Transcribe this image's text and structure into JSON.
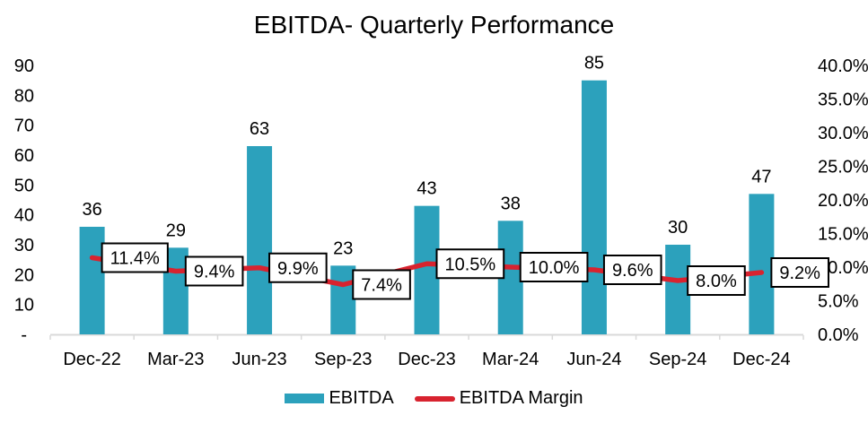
{
  "chart_data": {
    "type": "bar",
    "title": "EBITDA- Quarterly Performance",
    "categories": [
      "Dec-22",
      "Mar-23",
      "Jun-23",
      "Sep-23",
      "Dec-23",
      "Mar-24",
      "Jun-24",
      "Sep-24",
      "Dec-24"
    ],
    "series": [
      {
        "name": "EBITDA",
        "chart_type": "bar",
        "axis": "left",
        "color": "#2CA1BC",
        "values": [
          36,
          29,
          63,
          23,
          43,
          38,
          85,
          30,
          47
        ],
        "data_labels": [
          "36",
          "29",
          "63",
          "23",
          "43",
          "38",
          "85",
          "30",
          "47"
        ]
      },
      {
        "name": "EBITDA Margin",
        "chart_type": "line",
        "axis": "right",
        "color": "#D8232F",
        "values": [
          11.4,
          9.4,
          9.9,
          7.4,
          10.5,
          10.0,
          9.6,
          8.0,
          9.2
        ],
        "data_labels": [
          "11.4%",
          "9.4%",
          "9.9%",
          "7.4%",
          "10.5%",
          "10.0%",
          "9.6%",
          "8.0%",
          "9.2%"
        ]
      }
    ],
    "left_axis": {
      "min": 0,
      "max": 90,
      "step": 10,
      "tick_labels": [
        "90",
        "80",
        "70",
        "60",
        "50",
        "40",
        "30",
        "20",
        "10",
        "-"
      ]
    },
    "right_axis": {
      "min": 0,
      "max": 40,
      "step": 5,
      "tick_labels": [
        "40.0%",
        "35.0%",
        "30.0%",
        "25.0%",
        "20.0%",
        "15.0%",
        "10.0%",
        "5.0%",
        "0.0%"
      ]
    },
    "grid": false,
    "legend_position": "bottom",
    "text_color": "#000000",
    "axis_line_color": "#D9D9D9",
    "label_box": {
      "fill": "#FFFFFF",
      "border": "#000000"
    }
  }
}
